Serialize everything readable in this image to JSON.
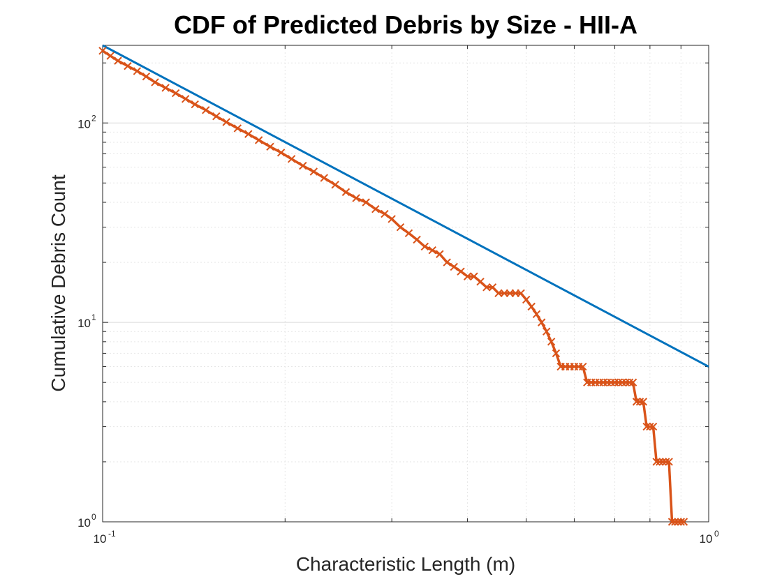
{
  "chart_data": {
    "type": "line",
    "title": "CDF of Predicted Debris by Size - HII-A",
    "xlabel": "Characteristic Length (m)",
    "ylabel": "Cumulative Debris Count",
    "xscale": "log",
    "yscale": "log",
    "xlim": [
      0.1,
      1
    ],
    "ylim": [
      1,
      245
    ],
    "grid": true,
    "x_ticks": [
      {
        "base": "10",
        "exp": "-1"
      },
      {
        "base": "10",
        "exp": "0"
      }
    ],
    "y_ticks": [
      {
        "base": "10",
        "exp": "0"
      },
      {
        "base": "10",
        "exp": "1"
      },
      {
        "base": "10",
        "exp": "2"
      }
    ],
    "series": [
      {
        "color": "#0072BD",
        "marker": "none",
        "x": [
          0.1,
          1.0
        ],
        "y": [
          245,
          6
        ]
      },
      {
        "color": "#D95319",
        "marker": "x",
        "x": [
          0.1,
          0.103,
          0.106,
          0.11,
          0.114,
          0.118,
          0.122,
          0.127,
          0.132,
          0.137,
          0.142,
          0.148,
          0.154,
          0.16,
          0.167,
          0.174,
          0.181,
          0.189,
          0.197,
          0.205,
          0.214,
          0.223,
          0.232,
          0.242,
          0.252,
          0.262,
          0.272,
          0.282,
          0.292,
          0.3,
          0.31,
          0.32,
          0.33,
          0.34,
          0.35,
          0.36,
          0.37,
          0.38,
          0.39,
          0.4,
          0.41,
          0.42,
          0.43,
          0.44,
          0.45,
          0.46,
          0.47,
          0.48,
          0.49,
          0.5,
          0.51,
          0.52,
          0.53,
          0.54,
          0.55,
          0.56,
          0.57,
          0.58,
          0.59,
          0.6,
          0.61,
          0.62,
          0.63,
          0.64,
          0.65,
          0.66,
          0.67,
          0.68,
          0.69,
          0.7,
          0.71,
          0.72,
          0.73,
          0.74,
          0.75,
          0.76,
          0.77,
          0.78,
          0.79,
          0.8,
          0.81,
          0.82,
          0.83,
          0.84,
          0.85,
          0.86,
          0.87,
          0.88,
          0.89,
          0.9,
          0.91
        ],
        "y": [
          230,
          217,
          205,
          193,
          182,
          171,
          160,
          150,
          141,
          132,
          124,
          116,
          108,
          101,
          94,
          88,
          82,
          76,
          71,
          66,
          61,
          57,
          53,
          49,
          45,
          42,
          40,
          37,
          35,
          33,
          30,
          28,
          26,
          24,
          23,
          22,
          20,
          19,
          18,
          17,
          17,
          16,
          15,
          15,
          14,
          14,
          14,
          14,
          14,
          13,
          12,
          11,
          10,
          9,
          8,
          7,
          6,
          6,
          6,
          6,
          6,
          6,
          5,
          5,
          5,
          5,
          5,
          5,
          5,
          5,
          5,
          5,
          5,
          5,
          5,
          4,
          4,
          4,
          3,
          3,
          3,
          2,
          2,
          2,
          2,
          2,
          1,
          1,
          1,
          1,
          1
        ]
      }
    ]
  }
}
